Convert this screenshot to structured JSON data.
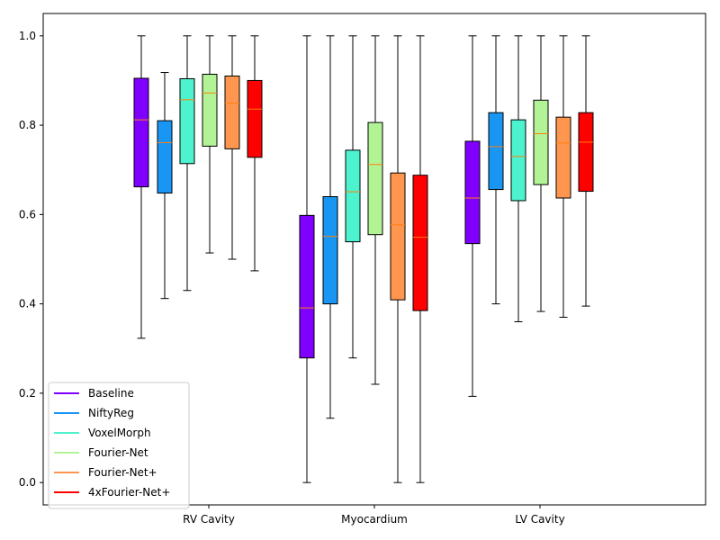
{
  "chart_data": {
    "type": "boxplot",
    "categories": [
      "RV Cavity",
      "Myocardium",
      "LV Cavity"
    ],
    "ylim": [
      -0.05,
      1.05
    ],
    "yticks": [
      "0.0",
      "0.2",
      "0.4",
      "0.6",
      "0.8",
      "1.0"
    ],
    "grid": false,
    "legend_position": "lower-left",
    "series": [
      {
        "name": "Baseline",
        "color": "#8000ff",
        "stats": [
          {
            "min": 0.323,
            "q1": 0.662,
            "median": 0.812,
            "q3": 0.905,
            "max": 1.0
          },
          {
            "min": 0.0,
            "q1": 0.279,
            "median": 0.391,
            "q3": 0.598,
            "max": 1.0
          },
          {
            "min": 0.193,
            "q1": 0.535,
            "median": 0.637,
            "q3": 0.764,
            "max": 1.0
          }
        ]
      },
      {
        "name": "NiftyReg",
        "color": "#1996f3",
        "stats": [
          {
            "min": 0.412,
            "q1": 0.648,
            "median": 0.761,
            "q3": 0.81,
            "max": 0.918
          },
          {
            "min": 0.144,
            "q1": 0.4,
            "median": 0.551,
            "q3": 0.64,
            "max": 1.0
          },
          {
            "min": 0.4,
            "q1": 0.656,
            "median": 0.752,
            "q3": 0.828,
            "max": 1.0
          }
        ]
      },
      {
        "name": "VoxelMorph",
        "color": "#4df3ce",
        "stats": [
          {
            "min": 0.43,
            "q1": 0.714,
            "median": 0.857,
            "q3": 0.904,
            "max": 1.0
          },
          {
            "min": 0.279,
            "q1": 0.539,
            "median": 0.651,
            "q3": 0.744,
            "max": 1.0
          },
          {
            "min": 0.36,
            "q1": 0.631,
            "median": 0.73,
            "q3": 0.812,
            "max": 1.0
          }
        ]
      },
      {
        "name": "Fourier-Net",
        "color": "#b2f396",
        "stats": [
          {
            "min": 0.514,
            "q1": 0.753,
            "median": 0.872,
            "q3": 0.914,
            "max": 1.0
          },
          {
            "min": 0.22,
            "q1": 0.555,
            "median": 0.712,
            "q3": 0.806,
            "max": 1.0
          },
          {
            "min": 0.383,
            "q1": 0.667,
            "median": 0.781,
            "q3": 0.856,
            "max": 1.0
          }
        ]
      },
      {
        "name": "Fourier-Net+",
        "color": "#ff964f",
        "stats": [
          {
            "min": 0.5,
            "q1": 0.747,
            "median": 0.849,
            "q3": 0.91,
            "max": 1.0
          },
          {
            "min": 0.0,
            "q1": 0.409,
            "median": 0.577,
            "q3": 0.693,
            "max": 1.0
          },
          {
            "min": 0.37,
            "q1": 0.637,
            "median": 0.76,
            "q3": 0.818,
            "max": 1.0
          }
        ]
      },
      {
        "name": "4xFourier-Net+",
        "color": "#ff0000",
        "stats": [
          {
            "min": 0.474,
            "q1": 0.728,
            "median": 0.836,
            "q3": 0.9,
            "max": 1.0
          },
          {
            "min": 0.0,
            "q1": 0.385,
            "median": 0.549,
            "q3": 0.688,
            "max": 1.0
          },
          {
            "min": 0.395,
            "q1": 0.652,
            "median": 0.762,
            "q3": 0.828,
            "max": 1.0
          }
        ]
      }
    ],
    "median_color": "#ff7f0e"
  }
}
